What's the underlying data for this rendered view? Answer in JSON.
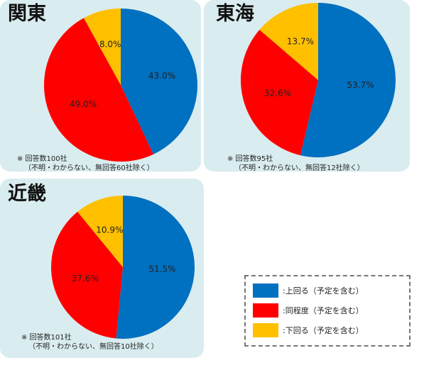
{
  "colors": {
    "above": "#0070c0",
    "same": "#ff0000",
    "below": "#ffc000"
  },
  "legend": [
    {
      "label": ":上回る（予定を含む）",
      "color": "#0070c0"
    },
    {
      "label": ":同程度（予定を含む）",
      "color": "#ff0000"
    },
    {
      "label": ":下回る（予定を含む）",
      "color": "#ffc000"
    }
  ],
  "chart_data": [
    {
      "type": "pie",
      "title": "関東",
      "slices": [
        {
          "label": "43.0%",
          "value": 43.0,
          "color": "#0070c0"
        },
        {
          "label": "49.0%",
          "value": 49.0,
          "color": "#ff0000"
        },
        {
          "label": "8.0%",
          "value": 8.0,
          "color": "#ffc000"
        }
      ],
      "note_line1": "※ 回答数100社",
      "note_line2": "（不明・わからない、無回答60社除く）"
    },
    {
      "type": "pie",
      "title": "東海",
      "slices": [
        {
          "label": "53.7%",
          "value": 53.7,
          "color": "#0070c0"
        },
        {
          "label": "32.6%",
          "value": 32.6,
          "color": "#ff0000"
        },
        {
          "label": "13.7%",
          "value": 13.7,
          "color": "#ffc000"
        }
      ],
      "note_line1": "※ 回答数95社",
      "note_line2": "（不明・わからない、無回答12社除く）"
    },
    {
      "type": "pie",
      "title": "近畿",
      "slices": [
        {
          "label": "51.5%",
          "value": 51.5,
          "color": "#0070c0"
        },
        {
          "label": "37.6%",
          "value": 37.6,
          "color": "#ff0000"
        },
        {
          "label": "10.9%",
          "value": 10.9,
          "color": "#ffc000"
        }
      ],
      "note_line1": "※ 回答数101社",
      "note_line2": "（不明・わからない、無回答10社除く）"
    }
  ]
}
